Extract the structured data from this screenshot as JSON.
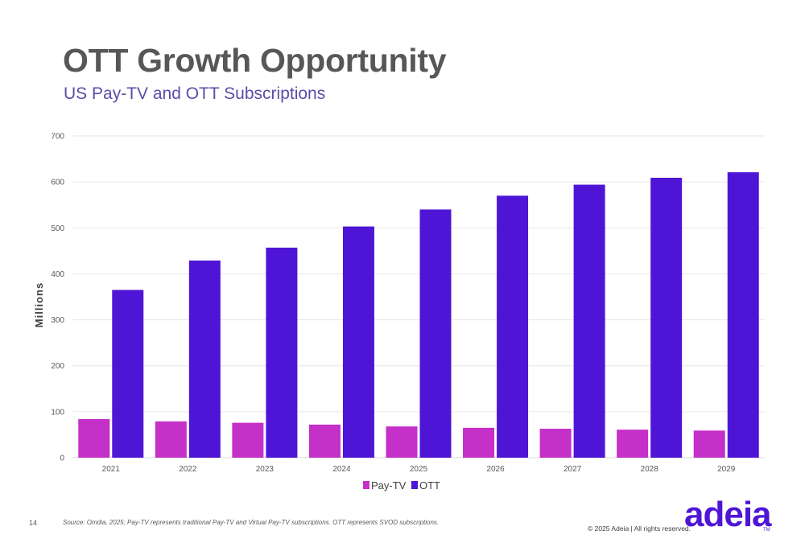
{
  "slide": {
    "title": "OTT Growth Opportunity",
    "subtitle": "US Pay-TV and OTT Subscriptions",
    "page_number": "14",
    "source": "Source:  Omdia, 2025; Pay-TV represents traditional Pay-TV and Virtual Pay-TV subscriptions. OTT represents SVOD subscriptions.",
    "copyright": "© 2025 Adeia | All rights reserved.",
    "logo": "adeia",
    "logo_tm": "TM"
  },
  "colors": {
    "pay_tv": "#c430c8",
    "ott": "#4f15d6",
    "title": "#575757",
    "subtitle": "#5a4ea8",
    "grid": "#e6e6e6",
    "axis_text": "#595959"
  },
  "chart_data": {
    "type": "bar",
    "categories": [
      "2021",
      "2022",
      "2023",
      "2024",
      "2025",
      "2026",
      "2027",
      "2028",
      "2029"
    ],
    "series": [
      {
        "name": "Pay-TV",
        "values": [
          84,
          79,
          76,
          72,
          68,
          65,
          63,
          61,
          59
        ]
      },
      {
        "name": "OTT",
        "values": [
          365,
          429,
          457,
          503,
          540,
          570,
          594,
          609,
          621
        ]
      }
    ],
    "ylabel": "Millions",
    "ylim": [
      0,
      700
    ],
    "yticks": [
      "0",
      "100",
      "200",
      "300",
      "400",
      "500",
      "600",
      "700"
    ],
    "grid": true,
    "legend": "bottom-center"
  }
}
